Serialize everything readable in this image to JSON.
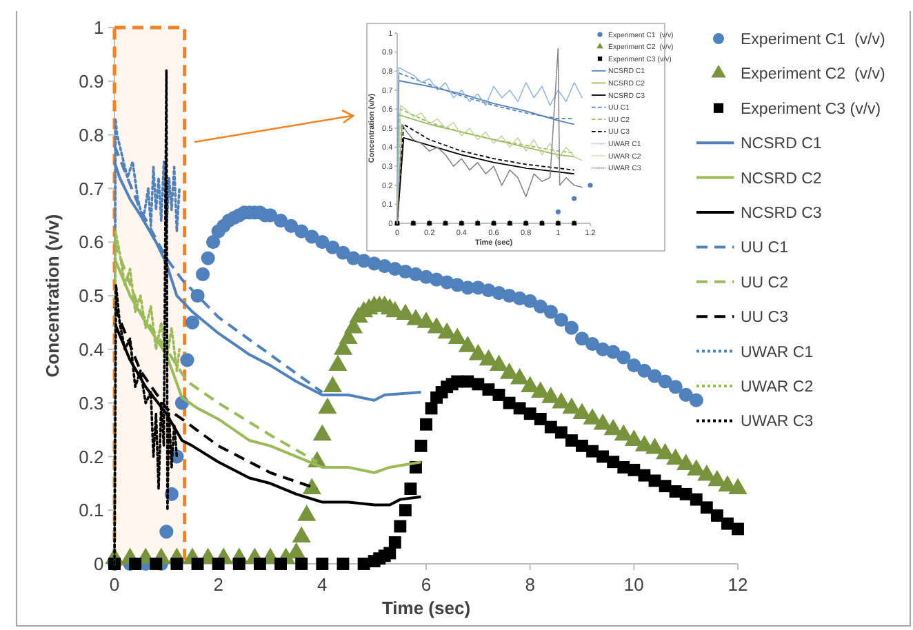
{
  "chart_data": [
    {
      "type": "scatter",
      "xlabel": "Time (sec)",
      "ylabel": "Concentration (v/v)",
      "xlim": [
        0,
        12
      ],
      "ylim": [
        0,
        1
      ],
      "xticks": [
        0,
        2,
        4,
        6,
        8,
        10,
        12
      ],
      "yticks": [
        0,
        0.1,
        0.2,
        0.3,
        0.4,
        0.5,
        0.6,
        0.7,
        0.8,
        0.9,
        1
      ],
      "legend": "right",
      "bands": [
        {
          "axis": "x",
          "from": 0,
          "to": 1.35,
          "color": "#f58220"
        }
      ],
      "series": [
        {
          "name": "Experiment C1  (v/v)",
          "marker": "circle",
          "color": "#4f81bd",
          "x": [
            0,
            0.3,
            0.6,
            0.9,
            1.0,
            1.1,
            1.2,
            1.3,
            1.4,
            1.5,
            1.6,
            1.7,
            1.8,
            1.9,
            2.0,
            2.1,
            2.2,
            2.3,
            2.4,
            2.5,
            2.6,
            2.7,
            2.8,
            2.9,
            3.0,
            3.2,
            3.4,
            3.6,
            3.8,
            4.0,
            4.2,
            4.4,
            4.6,
            4.8,
            5.0,
            5.2,
            5.4,
            5.6,
            5.8,
            6.0,
            6.2,
            6.4,
            6.6,
            6.8,
            7.0,
            7.2,
            7.4,
            7.6,
            7.8,
            8.0,
            8.2,
            8.4,
            8.6,
            8.8,
            9.0,
            9.2,
            9.4,
            9.6,
            9.8,
            10.0,
            10.2,
            10.4,
            10.6,
            10.8,
            11.0,
            11.2
          ],
          "values": [
            0,
            0,
            0,
            0,
            0.06,
            0.13,
            0.2,
            0.3,
            0.38,
            0.45,
            0.5,
            0.54,
            0.57,
            0.6,
            0.62,
            0.63,
            0.64,
            0.645,
            0.65,
            0.655,
            0.655,
            0.655,
            0.655,
            0.65,
            0.65,
            0.64,
            0.63,
            0.62,
            0.61,
            0.6,
            0.59,
            0.58,
            0.57,
            0.565,
            0.56,
            0.555,
            0.55,
            0.545,
            0.54,
            0.535,
            0.53,
            0.525,
            0.52,
            0.515,
            0.515,
            0.51,
            0.505,
            0.5,
            0.495,
            0.49,
            0.48,
            0.47,
            0.455,
            0.44,
            0.42,
            0.41,
            0.4,
            0.395,
            0.385,
            0.37,
            0.36,
            0.35,
            0.34,
            0.33,
            0.315,
            0.305
          ]
        },
        {
          "name": "Experiment C2  (v/v)",
          "marker": "triangle",
          "color": "#77933c",
          "x": [
            0,
            0.3,
            0.6,
            0.9,
            1.2,
            1.5,
            1.8,
            2.1,
            2.4,
            2.7,
            3.0,
            3.3,
            3.5,
            3.6,
            3.7,
            3.8,
            3.9,
            4.0,
            4.1,
            4.2,
            4.3,
            4.4,
            4.5,
            4.6,
            4.7,
            4.8,
            4.9,
            5.0,
            5.1,
            5.2,
            5.3,
            5.4,
            5.6,
            5.8,
            6.0,
            6.2,
            6.4,
            6.6,
            6.8,
            7.0,
            7.2,
            7.4,
            7.6,
            7.8,
            8.0,
            8.2,
            8.4,
            8.6,
            8.8,
            9.0,
            9.2,
            9.4,
            9.6,
            9.8,
            10.0,
            10.2,
            10.4,
            10.6,
            10.8,
            11.0,
            11.2,
            11.4,
            11.6,
            11.8,
            12.0
          ],
          "values": [
            0.01,
            0.01,
            0.01,
            0.01,
            0.01,
            0.01,
            0.01,
            0.01,
            0.01,
            0.01,
            0.01,
            0.01,
            0.02,
            0.05,
            0.09,
            0.14,
            0.19,
            0.24,
            0.29,
            0.33,
            0.37,
            0.4,
            0.42,
            0.44,
            0.46,
            0.47,
            0.475,
            0.48,
            0.48,
            0.48,
            0.475,
            0.47,
            0.465,
            0.455,
            0.45,
            0.44,
            0.43,
            0.42,
            0.405,
            0.39,
            0.38,
            0.37,
            0.355,
            0.345,
            0.33,
            0.32,
            0.31,
            0.3,
            0.29,
            0.28,
            0.27,
            0.26,
            0.25,
            0.24,
            0.23,
            0.22,
            0.215,
            0.205,
            0.195,
            0.185,
            0.175,
            0.165,
            0.155,
            0.145,
            0.14
          ]
        },
        {
          "name": "Experiment C3 (v/v)",
          "marker": "square",
          "color": "#000000",
          "x": [
            0,
            0.4,
            0.8,
            1.2,
            1.6,
            2.0,
            2.4,
            2.8,
            3.2,
            3.6,
            4.0,
            4.4,
            4.8,
            5.0,
            5.1,
            5.2,
            5.3,
            5.4,
            5.5,
            5.6,
            5.7,
            5.8,
            5.9,
            6.0,
            6.1,
            6.2,
            6.3,
            6.4,
            6.5,
            6.6,
            6.8,
            7.0,
            7.2,
            7.4,
            7.6,
            7.8,
            8.0,
            8.2,
            8.4,
            8.6,
            8.8,
            9.0,
            9.2,
            9.4,
            9.6,
            9.8,
            10.0,
            10.2,
            10.4,
            10.6,
            10.8,
            11.0,
            11.2,
            11.4,
            11.6,
            11.8,
            12.0
          ],
          "values": [
            0,
            0,
            0,
            0,
            0,
            0,
            0,
            0,
            0,
            0,
            0,
            0,
            0,
            0.005,
            0.01,
            0.015,
            0.02,
            0.04,
            0.07,
            0.1,
            0.14,
            0.18,
            0.22,
            0.26,
            0.29,
            0.31,
            0.32,
            0.33,
            0.335,
            0.34,
            0.34,
            0.335,
            0.325,
            0.315,
            0.3,
            0.29,
            0.28,
            0.27,
            0.255,
            0.245,
            0.23,
            0.22,
            0.21,
            0.2,
            0.19,
            0.18,
            0.175,
            0.165,
            0.155,
            0.145,
            0.135,
            0.13,
            0.12,
            0.105,
            0.09,
            0.075,
            0.065
          ]
        },
        {
          "name": "NCSRD C1",
          "type": "line",
          "line_style": "solid",
          "color": "#4f81bd",
          "x": [
            0,
            0.1,
            0.3,
            0.5,
            0.8,
            1.0,
            1.2,
            1.5,
            2.0,
            2.6,
            3.0,
            3.5,
            4.0,
            4.5,
            5.0,
            5.2,
            5.9
          ],
          "values": [
            0.75,
            0.72,
            0.68,
            0.65,
            0.6,
            0.56,
            0.5,
            0.47,
            0.43,
            0.39,
            0.37,
            0.34,
            0.315,
            0.315,
            0.305,
            0.315,
            0.32
          ]
        },
        {
          "name": "NCSRD C2",
          "type": "line",
          "line_style": "solid",
          "color": "#9bbb59",
          "x": [
            0,
            0.3,
            0.6,
            1.0,
            1.3,
            1.6,
            2.0,
            2.6,
            3.0,
            3.5,
            4.0,
            4.5,
            5.0,
            5.3,
            5.9
          ],
          "values": [
            0.57,
            0.5,
            0.45,
            0.39,
            0.31,
            0.29,
            0.27,
            0.23,
            0.22,
            0.2,
            0.18,
            0.18,
            0.17,
            0.18,
            0.19
          ]
        },
        {
          "name": "NCSRD C3",
          "type": "line",
          "line_style": "solid",
          "color": "#000000",
          "x": [
            0,
            0.3,
            0.6,
            1.0,
            1.3,
            1.5,
            2.0,
            2.6,
            3.0,
            3.5,
            4.0,
            4.5,
            5.0,
            5.3,
            5.5,
            5.9
          ],
          "values": [
            0.45,
            0.38,
            0.33,
            0.28,
            0.23,
            0.22,
            0.19,
            0.16,
            0.15,
            0.13,
            0.115,
            0.115,
            0.11,
            0.11,
            0.12,
            0.125
          ]
        },
        {
          "name": "UU C1",
          "type": "line",
          "line_style": "dashed",
          "color": "#4f81bd",
          "x": [
            0,
            0.5,
            1.0,
            1.3,
            2.0,
            3.0,
            4.0
          ],
          "values": [
            0.78,
            0.66,
            0.57,
            0.53,
            0.46,
            0.39,
            0.32
          ]
        },
        {
          "name": "UU C2",
          "type": "line",
          "line_style": "dashed",
          "color": "#9bbb59",
          "x": [
            0,
            0.5,
            1.0,
            1.4,
            2.0,
            3.0,
            3.9
          ],
          "values": [
            0.6,
            0.47,
            0.4,
            0.34,
            0.3,
            0.24,
            0.19
          ]
        },
        {
          "name": "UU C3",
          "type": "line",
          "line_style": "dashed",
          "color": "#000000",
          "x": [
            0,
            0.5,
            1.0,
            1.3,
            2.0,
            3.0,
            3.9
          ],
          "values": [
            0.48,
            0.36,
            0.29,
            0.27,
            0.22,
            0.17,
            0.14
          ]
        },
        {
          "name": "UWAR C1",
          "type": "line",
          "line_style": "dotted",
          "color": "#4f81bd",
          "x": [
            0,
            0.02,
            0.05,
            0.15,
            0.25,
            0.35,
            0.45,
            0.55,
            0.65,
            0.7,
            0.75,
            0.8,
            0.85,
            0.9,
            0.95,
            1.0,
            1.05,
            1.1,
            1.15,
            1.2,
            1.25
          ],
          "values": [
            0,
            0.83,
            0.8,
            0.76,
            0.72,
            0.75,
            0.68,
            0.64,
            0.7,
            0.63,
            0.74,
            0.66,
            0.72,
            0.64,
            0.75,
            0.62,
            0.72,
            0.66,
            0.74,
            0.62,
            0.7
          ]
        },
        {
          "name": "UWAR C2",
          "type": "line",
          "line_style": "dotted",
          "color": "#9bbb59",
          "x": [
            0,
            0.02,
            0.1,
            0.2,
            0.3,
            0.4,
            0.5,
            0.6,
            0.7,
            0.8,
            0.9,
            1.0,
            1.1,
            1.2,
            1.25
          ],
          "values": [
            0,
            0.62,
            0.58,
            0.52,
            0.55,
            0.47,
            0.5,
            0.44,
            0.48,
            0.4,
            0.45,
            0.38,
            0.44,
            0.36,
            0.4
          ]
        },
        {
          "name": "UWAR C3",
          "type": "line",
          "line_style": "dotted",
          "color": "#000000",
          "x": [
            0,
            0.03,
            0.1,
            0.2,
            0.3,
            0.4,
            0.5,
            0.6,
            0.7,
            0.75,
            0.8,
            0.85,
            0.9,
            0.95,
            1.0,
            1.02,
            1.05,
            1.1,
            1.15,
            1.2
          ],
          "values": [
            0,
            0.52,
            0.45,
            0.4,
            0.42,
            0.33,
            0.36,
            0.3,
            0.32,
            0.2,
            0.28,
            0.14,
            0.3,
            0.22,
            0.92,
            0.1,
            0.28,
            0.18,
            0.26,
            0.2
          ]
        }
      ]
    },
    {
      "type": "scatter",
      "xlabel": "Time (sec)",
      "ylabel": "Concentration (v/v)",
      "xlim": [
        0,
        1.2
      ],
      "ylim": [
        0,
        1
      ],
      "xticks": [
        0,
        0.2,
        0.4,
        0.6,
        0.8,
        1,
        1.2
      ],
      "yticks": [
        0,
        0.1,
        0.2,
        0.3,
        0.4,
        0.5,
        0.6,
        0.7,
        0.8,
        0.9,
        1
      ],
      "legend": "top right",
      "series": [
        {
          "name": "Experiment C1  (v/v)",
          "marker": "circle",
          "color": "#4f81bd",
          "x": [
            0,
            0.1,
            0.2,
            0.3,
            0.4,
            0.5,
            0.6,
            0.7,
            0.8,
            0.9,
            1.0,
            1.1,
            1.2
          ],
          "values": [
            0,
            0,
            0,
            0,
            0,
            0,
            0,
            0,
            0,
            0,
            0.06,
            0.13,
            0.2
          ]
        },
        {
          "name": "Experiment C2  (v/v)",
          "marker": "triangle",
          "color": "#77933c",
          "x": [
            0,
            0.1,
            0.2,
            0.3,
            0.4,
            0.5,
            0.6,
            0.7,
            0.8,
            0.9,
            1.0,
            1.1
          ],
          "values": [
            0,
            0,
            0,
            0,
            0,
            0,
            0,
            0,
            0,
            0,
            0,
            0
          ]
        },
        {
          "name": "Experiment C3 (v/v)",
          "marker": "square",
          "color": "#000000",
          "x": [
            0,
            0.1,
            0.2,
            0.3,
            0.4,
            0.5,
            0.6,
            0.7,
            0.8,
            0.9,
            1.0,
            1.1
          ],
          "values": [
            0,
            0,
            0,
            0,
            0,
            0,
            0,
            0,
            0,
            0,
            0,
            0
          ]
        },
        {
          "name": "NCSRD C1",
          "type": "line",
          "line_style": "solid",
          "color": "#4f81bd",
          "x": [
            0,
            0.01,
            0.2,
            0.4,
            0.6,
            0.8,
            1.0,
            1.1
          ],
          "values": [
            0,
            0.75,
            0.72,
            0.68,
            0.63,
            0.59,
            0.54,
            0.52
          ]
        },
        {
          "name": "NCSRD C2",
          "type": "line",
          "line_style": "solid",
          "color": "#9bbb59",
          "x": [
            0,
            0.01,
            0.2,
            0.4,
            0.6,
            0.8,
            1.0,
            1.1
          ],
          "values": [
            0,
            0.57,
            0.52,
            0.48,
            0.44,
            0.4,
            0.36,
            0.35
          ]
        },
        {
          "name": "NCSRD C3",
          "type": "line",
          "line_style": "solid",
          "color": "#000000",
          "x": [
            0,
            0.04,
            0.2,
            0.4,
            0.6,
            0.8,
            1.0,
            1.1
          ],
          "values": [
            0,
            0.45,
            0.41,
            0.36,
            0.32,
            0.29,
            0.27,
            0.26
          ]
        },
        {
          "name": "UU C1",
          "type": "line",
          "line_style": "dashed",
          "color": "#4f81bd",
          "x": [
            0,
            0.01,
            0.2,
            0.4,
            0.6,
            0.8,
            1.0,
            1.1
          ],
          "values": [
            0,
            0.79,
            0.73,
            0.67,
            0.62,
            0.58,
            0.55,
            0.55
          ]
        },
        {
          "name": "UU C2",
          "type": "line",
          "line_style": "dashed",
          "color": "#9bbb59",
          "x": [
            0,
            0.02,
            0.2,
            0.4,
            0.6,
            0.8,
            1.0,
            1.1
          ],
          "values": [
            0,
            0.6,
            0.53,
            0.48,
            0.44,
            0.41,
            0.38,
            0.37
          ]
        },
        {
          "name": "UU C3",
          "type": "line",
          "line_style": "dashed",
          "color": "#000000",
          "x": [
            0,
            0.04,
            0.2,
            0.4,
            0.6,
            0.8,
            1.0,
            1.1
          ],
          "values": [
            0,
            0.52,
            0.44,
            0.38,
            0.34,
            0.31,
            0.29,
            0.28
          ]
        },
        {
          "name": "UWAR C1",
          "type": "line",
          "line_style": "dotted",
          "color": "#8eb4e3",
          "x": [
            0,
            0.01,
            0.05,
            0.1,
            0.15,
            0.2,
            0.25,
            0.3,
            0.35,
            0.4,
            0.45,
            0.5,
            0.55,
            0.6,
            0.65,
            0.7,
            0.75,
            0.8,
            0.85,
            0.9,
            0.95,
            1.0,
            1.05,
            1.1,
            1.15
          ],
          "values": [
            0,
            0.82,
            0.8,
            0.78,
            0.74,
            0.76,
            0.7,
            0.74,
            0.66,
            0.7,
            0.64,
            0.68,
            0.62,
            0.72,
            0.66,
            0.7,
            0.64,
            0.74,
            0.66,
            0.72,
            0.62,
            0.7,
            0.64,
            0.74,
            0.66
          ]
        },
        {
          "name": "UWAR C2",
          "type": "line",
          "line_style": "dotted",
          "color": "#c3d69b",
          "x": [
            0,
            0.02,
            0.05,
            0.1,
            0.15,
            0.2,
            0.25,
            0.3,
            0.35,
            0.4,
            0.45,
            0.5,
            0.55,
            0.6,
            0.65,
            0.7,
            0.75,
            0.8,
            0.85,
            0.9,
            0.95,
            1.0,
            1.05,
            1.1,
            1.15
          ],
          "values": [
            0,
            0.62,
            0.6,
            0.56,
            0.58,
            0.52,
            0.55,
            0.5,
            0.53,
            0.46,
            0.5,
            0.44,
            0.48,
            0.42,
            0.46,
            0.4,
            0.45,
            0.38,
            0.44,
            0.36,
            0.42,
            0.34,
            0.4,
            0.35,
            0.33
          ]
        },
        {
          "name": "UWAR C3",
          "type": "line",
          "line_style": "dotted",
          "color": "#7f7f7f",
          "x": [
            0,
            0.03,
            0.06,
            0.1,
            0.15,
            0.2,
            0.25,
            0.3,
            0.35,
            0.4,
            0.45,
            0.5,
            0.55,
            0.6,
            0.65,
            0.7,
            0.75,
            0.8,
            0.85,
            0.9,
            0.95,
            1.0,
            1.01,
            1.05,
            1.1,
            1.15
          ],
          "values": [
            0,
            0.52,
            0.48,
            0.44,
            0.42,
            0.38,
            0.4,
            0.36,
            0.3,
            0.34,
            0.28,
            0.32,
            0.26,
            0.3,
            0.2,
            0.28,
            0.24,
            0.14,
            0.26,
            0.22,
            0.24,
            0.92,
            0.2,
            0.24,
            0.2,
            0.19
          ]
        }
      ]
    }
  ]
}
